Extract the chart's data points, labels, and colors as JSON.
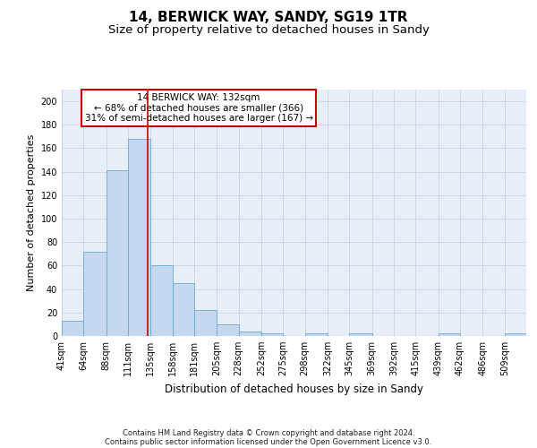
{
  "title": "14, BERWICK WAY, SANDY, SG19 1TR",
  "subtitle": "Size of property relative to detached houses in Sandy",
  "xlabel": "Distribution of detached houses by size in Sandy",
  "ylabel": "Number of detached properties",
  "bar_values": [
    13,
    72,
    141,
    168,
    60,
    45,
    22,
    10,
    4,
    2,
    0,
    2,
    0,
    2,
    0,
    0,
    0,
    2,
    0,
    0,
    2
  ],
  "bin_edges": [
    41,
    64,
    88,
    111,
    135,
    158,
    181,
    205,
    228,
    252,
    275,
    298,
    322,
    345,
    369,
    392,
    415,
    439,
    462,
    486,
    509,
    532
  ],
  "tick_labels": [
    "41sqm",
    "64sqm",
    "88sqm",
    "111sqm",
    "135sqm",
    "158sqm",
    "181sqm",
    "205sqm",
    "228sqm",
    "252sqm",
    "275sqm",
    "298sqm",
    "322sqm",
    "345sqm",
    "369sqm",
    "392sqm",
    "415sqm",
    "439sqm",
    "462sqm",
    "486sqm",
    "509sqm"
  ],
  "bar_color": "#c5d8f0",
  "bar_edgecolor": "#6aaad4",
  "grid_color": "#c8d4e8",
  "axes_background": "#e8eef8",
  "red_line_x": 132,
  "annotation_line1": "14 BERWICK WAY: 132sqm",
  "annotation_line2": "← 68% of detached houses are smaller (366)",
  "annotation_line3": "31% of semi-detached houses are larger (167) →",
  "annotation_box_color": "#cc0000",
  "ylim": [
    0,
    210
  ],
  "yticks": [
    0,
    20,
    40,
    60,
    80,
    100,
    120,
    140,
    160,
    180,
    200
  ],
  "footer_line1": "Contains HM Land Registry data © Crown copyright and database right 2024.",
  "footer_line2": "Contains public sector information licensed under the Open Government Licence v3.0.",
  "title_fontsize": 11,
  "subtitle_fontsize": 9.5,
  "xlabel_fontsize": 8.5,
  "ylabel_fontsize": 8,
  "tick_fontsize": 7,
  "annotation_fontsize": 7.5,
  "footer_fontsize": 6
}
